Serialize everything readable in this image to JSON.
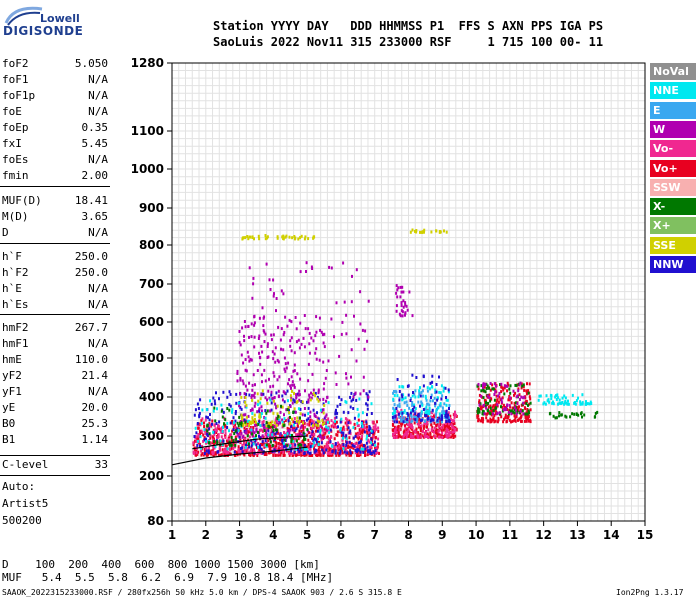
{
  "logo": {
    "line1": "Lowell",
    "line2": "DIGISONDE"
  },
  "header": {
    "line1": "Station YYYY DAY   DDD HHMMSS P1  FFS S AXN PPS IGA PS",
    "line2": "SaoLuis 2022 Nov11 315 233000 RSF     1 715 100 00- 11"
  },
  "params": [
    {
      "name": "foF2",
      "value": "5.050"
    },
    {
      "name": "foF1",
      "value": "N/A"
    },
    {
      "name": "foF1p",
      "value": "N/A"
    },
    {
      "name": "foE",
      "value": "N/A"
    },
    {
      "name": "foEp",
      "value": "0.35"
    },
    {
      "name": "fxI",
      "value": "5.45"
    },
    {
      "name": "foEs",
      "value": "N/A"
    },
    {
      "name": "fmin",
      "value": "2.00"
    },
    {
      "name": "MUF(D)",
      "value": "18.41"
    },
    {
      "name": "M(D)",
      "value": "3.65"
    },
    {
      "name": "D",
      "value": "N/A"
    },
    {
      "name": "h`F",
      "value": "250.0"
    },
    {
      "name": "h`F2",
      "value": "250.0"
    },
    {
      "name": "h`E",
      "value": "N/A"
    },
    {
      "name": "h`Es",
      "value": "N/A"
    },
    {
      "name": "hmF2",
      "value": "267.7"
    },
    {
      "name": "hmF1",
      "value": "N/A"
    },
    {
      "name": "hmE",
      "value": "110.0"
    },
    {
      "name": "yF2",
      "value": "21.4"
    },
    {
      "name": "yF1",
      "value": "N/A"
    },
    {
      "name": "yE",
      "value": "20.0"
    },
    {
      "name": "B0",
      "value": "25.3"
    },
    {
      "name": "B1",
      "value": "1.14"
    },
    {
      "name": "C-level",
      "value": "33"
    }
  ],
  "auto": {
    "line1": "Auto:",
    "line2": "Artist5",
    "line3": "500200"
  },
  "footer": {
    "d_line": "D    100  200  400  600  800 1000 1500 3000 [km]",
    "muf_line": "MUF   5.4  5.5  5.8  6.2  6.9  7.9 10.8 18.4 [MHz]",
    "info": "SAAOK_2022315233000.RSF / 280fx256h 50 kHz 5.0 km / DPS-4 SAAOK 903 / 2.6 S 315.8 E",
    "version": "Ion2Png 1.3.17"
  },
  "legend": [
    {
      "label": "NoVal",
      "color": "#909090"
    },
    {
      "label": "NNE",
      "color": "#00e8f0"
    },
    {
      "label": "E",
      "color": "#3aa8f0"
    },
    {
      "label": "W",
      "color": "#b000b0"
    },
    {
      "label": "Vo-",
      "color": "#f02890"
    },
    {
      "label": "Vo+",
      "color": "#e80020"
    },
    {
      "label": "SSW",
      "color": "#f8b0b0"
    },
    {
      "label": "X-",
      "color": "#007800"
    },
    {
      "label": "X+",
      "color": "#80c060"
    },
    {
      "label": "SSE",
      "color": "#d0d000"
    },
    {
      "label": "NNW",
      "color": "#2010d0"
    }
  ],
  "chart_data": {
    "type": "scatter",
    "xlim": [
      1,
      15
    ],
    "ylim": [
      80,
      1280
    ],
    "x_ticks": [
      "1",
      "2",
      "3",
      "4",
      "5",
      "6",
      "7",
      "8",
      "9",
      "10",
      "11",
      "12",
      "13",
      "14",
      "15"
    ],
    "y_ticks": [
      "80",
      "200",
      "300",
      "400",
      "500",
      "600",
      "700",
      "800",
      "900",
      "1000",
      "1100",
      "1280"
    ],
    "grid": true,
    "clusters": [
      {
        "color": "#e80020",
        "x": [
          1.6,
          7.1
        ],
        "y": [
          255,
          345
        ],
        "n": 700
      },
      {
        "color": "#f02890",
        "x": [
          1.6,
          7.1
        ],
        "y": [
          260,
          350
        ],
        "n": 400
      },
      {
        "color": "#2010d0",
        "x": [
          1.6,
          7.0
        ],
        "y": [
          260,
          420
        ],
        "n": 300
      },
      {
        "color": "#b000b0",
        "x": [
          2.9,
          5.6
        ],
        "y": [
          300,
          620
        ],
        "n": 260
      },
      {
        "color": "#b000b0",
        "x": [
          2.9,
          6.8
        ],
        "y": [
          400,
          760
        ],
        "n": 120
      },
      {
        "color": "#00e8f0",
        "x": [
          1.6,
          7.0
        ],
        "y": [
          270,
          400
        ],
        "n": 120
      },
      {
        "color": "#d0d000",
        "x": [
          3.0,
          5.5
        ],
        "y": [
          330,
          420
        ],
        "n": 80
      },
      {
        "color": "#007800",
        "x": [
          2.0,
          5.0
        ],
        "y": [
          280,
          380
        ],
        "n": 80
      },
      {
        "color": "#e80020",
        "x": [
          7.5,
          9.4
        ],
        "y": [
          300,
          360
        ],
        "n": 260
      },
      {
        "color": "#f02890",
        "x": [
          7.5,
          9.4
        ],
        "y": [
          300,
          370
        ],
        "n": 150
      },
      {
        "color": "#3aa8f0",
        "x": [
          7.5,
          9.2
        ],
        "y": [
          340,
          420
        ],
        "n": 120
      },
      {
        "color": "#00e8f0",
        "x": [
          7.5,
          9.2
        ],
        "y": [
          360,
          440
        ],
        "n": 60
      },
      {
        "color": "#2010d0",
        "x": [
          7.5,
          9.2
        ],
        "y": [
          340,
          460
        ],
        "n": 80
      },
      {
        "color": "#b000b0",
        "x": [
          7.6,
          8.1
        ],
        "y": [
          620,
          700
        ],
        "n": 30
      },
      {
        "color": "#e80020",
        "x": [
          10.0,
          11.6
        ],
        "y": [
          340,
          440
        ],
        "n": 220
      },
      {
        "color": "#007800",
        "x": [
          10.0,
          11.6
        ],
        "y": [
          360,
          440
        ],
        "n": 80
      },
      {
        "color": "#b000b0",
        "x": [
          10.0,
          11.5
        ],
        "y": [
          360,
          440
        ],
        "n": 60
      },
      {
        "color": "#00e8f0",
        "x": [
          11.8,
          13.4
        ],
        "y": [
          385,
          410
        ],
        "n": 60
      },
      {
        "color": "#007800",
        "x": [
          12.0,
          13.7
        ],
        "y": [
          350,
          365
        ],
        "n": 25
      },
      {
        "color": "#d0d000",
        "x": [
          3.0,
          5.2
        ],
        "y": [
          820,
          830
        ],
        "n": 40
      },
      {
        "color": "#d0d000",
        "x": [
          8.0,
          9.2
        ],
        "y": [
          838,
          845
        ],
        "n": 20
      }
    ],
    "profile_lines": [
      {
        "color": "#000000",
        "points": [
          [
            1,
            228
          ],
          [
            2,
            245
          ],
          [
            3,
            255
          ],
          [
            4,
            262
          ],
          [
            5,
            272
          ]
        ]
      },
      {
        "color": "#000000",
        "points": [
          [
            1.6,
            268
          ],
          [
            2.5,
            280
          ],
          [
            3.5,
            292
          ],
          [
            4.5,
            298
          ],
          [
            5,
            300
          ]
        ]
      }
    ]
  }
}
